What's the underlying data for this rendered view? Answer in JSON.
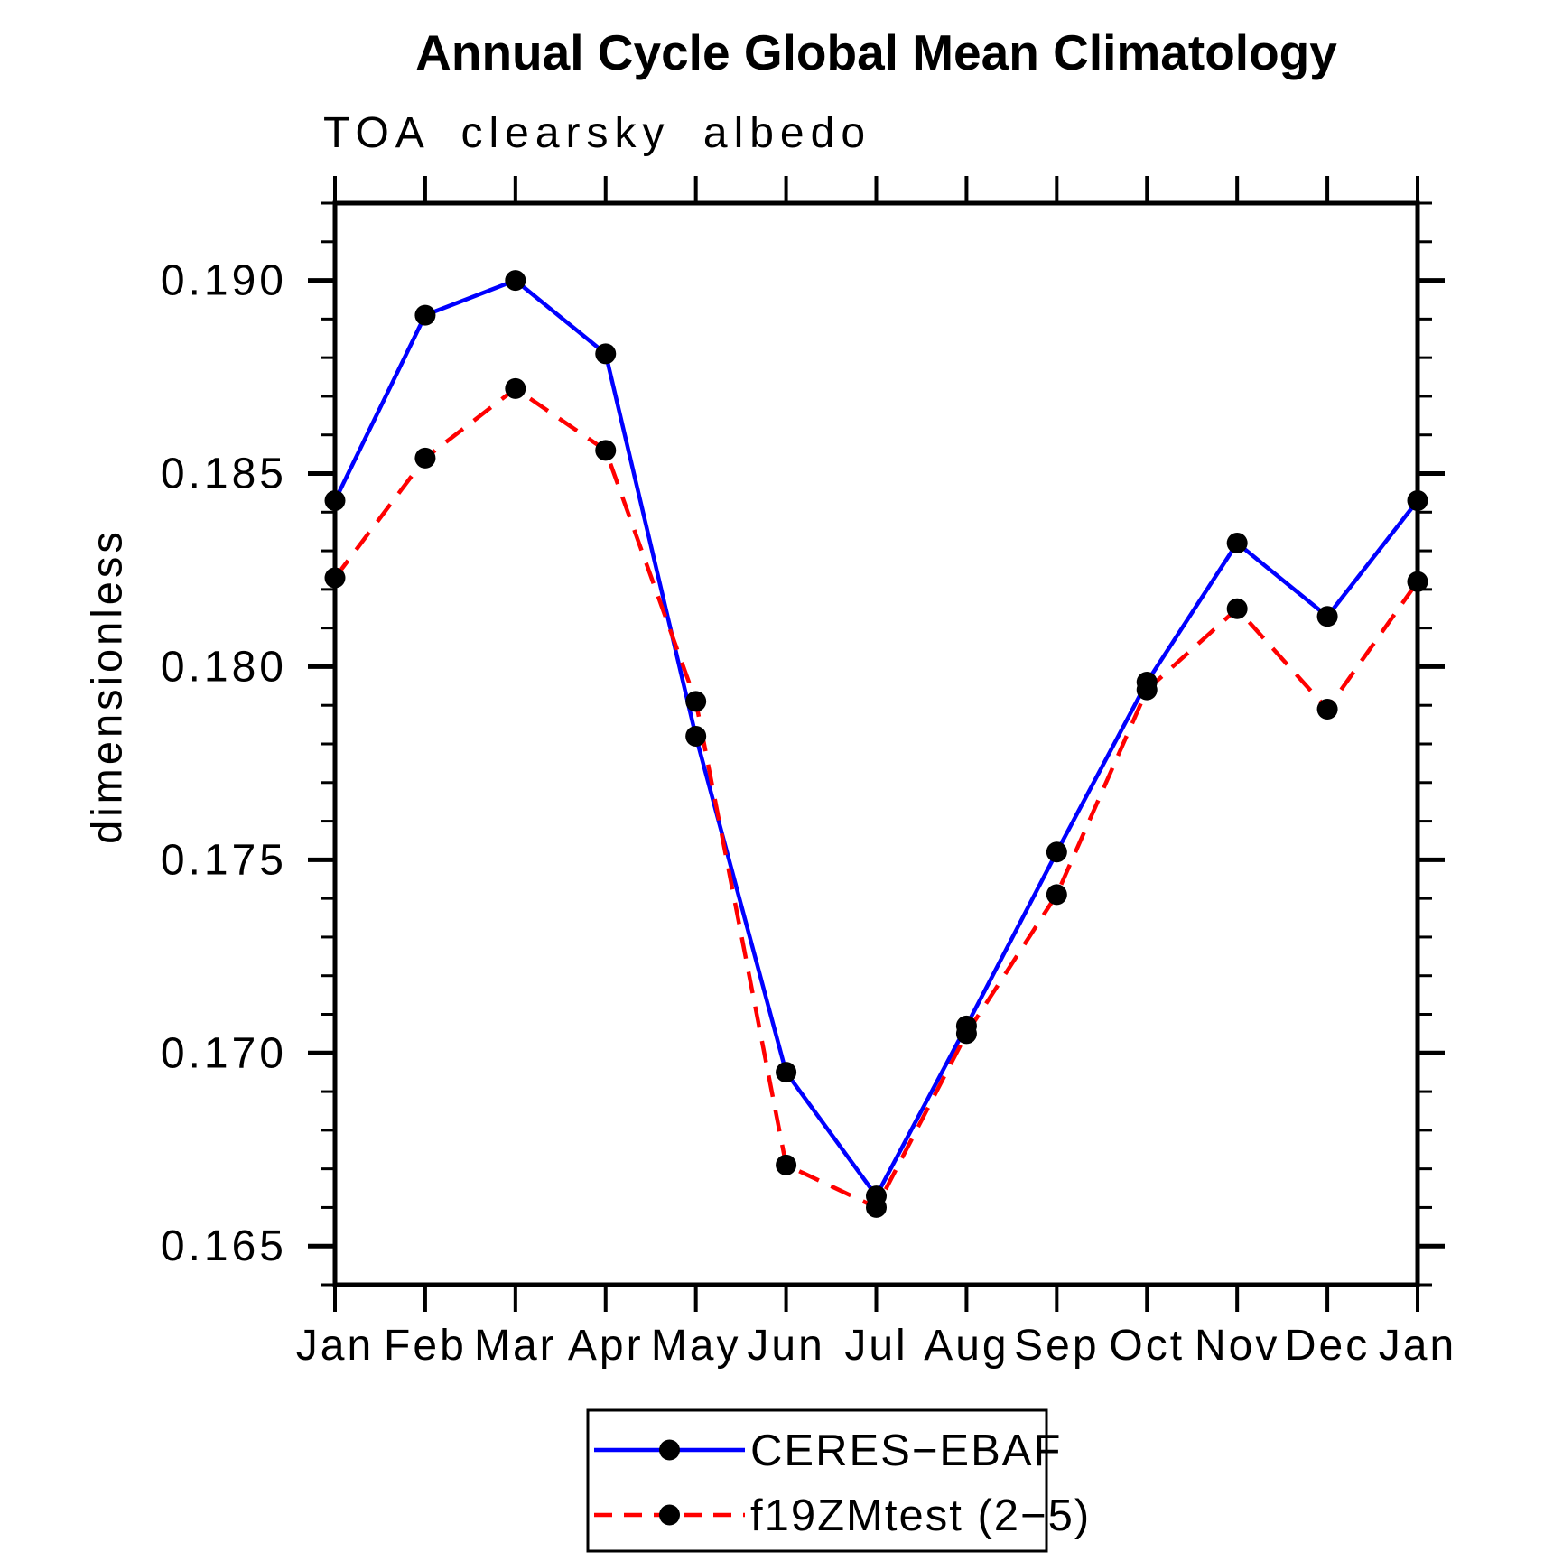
{
  "chart_data": {
    "type": "line",
    "title": "Annual Cycle Global Mean Climatology",
    "subtitle": "TOA clearsky albedo",
    "ylabel": "dimensionless",
    "x_tick_labels": [
      "Jan",
      "Feb",
      "Mar",
      "Apr",
      "May",
      "Jun",
      "Jul",
      "Aug",
      "Sep",
      "Oct",
      "Nov",
      "Dec",
      "Jan"
    ],
    "y_tick_labels": [
      "0.165",
      "0.170",
      "0.175",
      "0.180",
      "0.185",
      "0.190"
    ],
    "ylim": [
      0.164,
      0.192
    ],
    "y_major_step": 0.005,
    "y_minor_step": 0.001,
    "grid": false,
    "legend_position": "bottom-center",
    "axis_color": "#000000",
    "marker_color": "#000000",
    "series": [
      {
        "name": "CERES−EBAF",
        "color": "#0000ff",
        "style": "solid",
        "marker": "circle",
        "values": [
          0.1843,
          0.1891,
          0.19,
          0.1881,
          0.1782,
          0.1695,
          0.1663,
          0.1707,
          0.1752,
          0.1796,
          0.1832,
          0.1813,
          0.1843
        ]
      },
      {
        "name": "f19ZMtest (2−5)",
        "color": "#ff0000",
        "style": "dashed",
        "marker": "circle",
        "values": [
          0.1823,
          0.1854,
          0.1872,
          0.1856,
          0.1791,
          0.1671,
          0.166,
          0.1705,
          0.1741,
          0.1794,
          0.1815,
          0.1789,
          0.1822
        ]
      }
    ]
  }
}
